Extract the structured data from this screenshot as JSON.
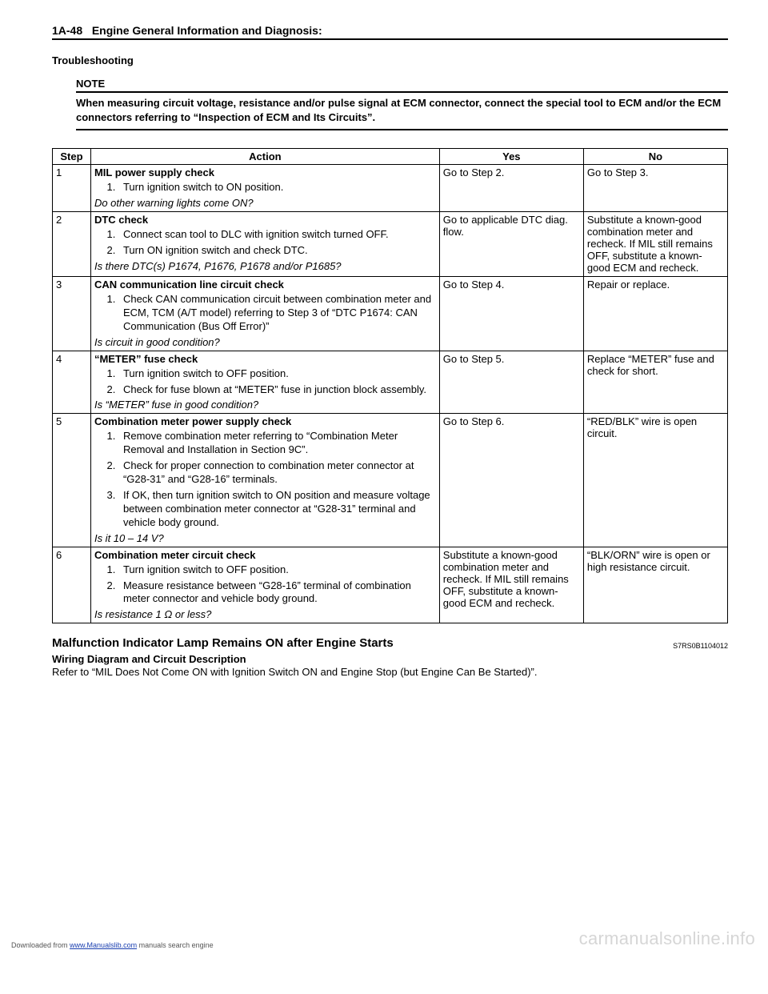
{
  "header": {
    "page_number": "1A-48",
    "title": "Engine General Information and Diagnosis:"
  },
  "troubleshooting": {
    "title": "Troubleshooting",
    "note_label": "NOTE",
    "note_text": "When measuring circuit voltage, resistance and/or pulse signal at ECM connector, connect the special tool to ECM and/or the ECM connectors referring to “Inspection of ECM and Its Circuits”."
  },
  "table": {
    "headers": {
      "step": "Step",
      "action": "Action",
      "yes": "Yes",
      "no": "No"
    },
    "rows": [
      {
        "step": "1",
        "title": "MIL power supply check",
        "substeps": [
          "Turn ignition switch to ON position."
        ],
        "question": "Do other warning lights come ON?",
        "yes": "Go to Step 2.",
        "no": "Go to Step 3."
      },
      {
        "step": "2",
        "title": "DTC check",
        "substeps": [
          "Connect scan tool to DLC with ignition switch turned OFF.",
          "Turn ON ignition switch and check DTC."
        ],
        "question": "Is there DTC(s) P1674, P1676, P1678 and/or P1685?",
        "yes": "Go to applicable DTC diag. flow.",
        "no": "Substitute a known-good combination meter and recheck. If MIL still remains OFF, substitute a known-good ECM and recheck."
      },
      {
        "step": "3",
        "title": "CAN communication line circuit check",
        "substeps": [
          "Check CAN communication circuit between combination meter and ECM, TCM (A/T model) referring to Step 3 of “DTC P1674: CAN Communication (Bus Off Error)”"
        ],
        "question": "Is circuit in good condition?",
        "yes": "Go to Step 4.",
        "no": "Repair or replace."
      },
      {
        "step": "4",
        "title": "“METER” fuse check",
        "substeps": [
          "Turn ignition switch to OFF position.",
          "Check for fuse blown at “METER” fuse in junction block assembly."
        ],
        "question": "Is “METER” fuse in good condition?",
        "yes": "Go to Step 5.",
        "no": "Replace “METER” fuse and check for short."
      },
      {
        "step": "5",
        "title": "Combination meter power supply check",
        "substeps": [
          "Remove combination meter referring to “Combination Meter Removal and Installation in Section 9C”.",
          "Check for proper connection to combination meter connector at “G28-31” and “G28-16” terminals.",
          "If OK, then turn ignition switch to ON position and measure voltage between combination meter connector at “G28-31” terminal and vehicle body ground."
        ],
        "question": "Is it 10 – 14 V?",
        "yes": "Go to Step 6.",
        "no": "“RED/BLK” wire is open circuit."
      },
      {
        "step": "6",
        "title": "Combination meter circuit check",
        "substeps": [
          "Turn ignition switch to OFF position.",
          "Measure resistance between “G28-16” terminal of combination meter connector and vehicle body ground."
        ],
        "question": "Is resistance 1 Ω or less?",
        "yes": "Substitute a known-good combination meter and recheck. If MIL still remains OFF, substitute a known-good ECM and recheck.",
        "no": "“BLK/ORN” wire is open or high resistance circuit."
      }
    ]
  },
  "section2": {
    "title": "Malfunction Indicator Lamp Remains ON after Engine Starts",
    "code": "S7RS0B1104012",
    "subtitle": "Wiring Diagram and Circuit Description",
    "body": "Refer to “MIL Does Not Come ON with Ignition Switch ON and Engine Stop (but Engine Can Be Started)”."
  },
  "footer": {
    "prefix": "Downloaded from ",
    "link_text": "www.Manualslib.com",
    "suffix": " manuals search engine"
  },
  "watermark": "carmanualsonline.info"
}
